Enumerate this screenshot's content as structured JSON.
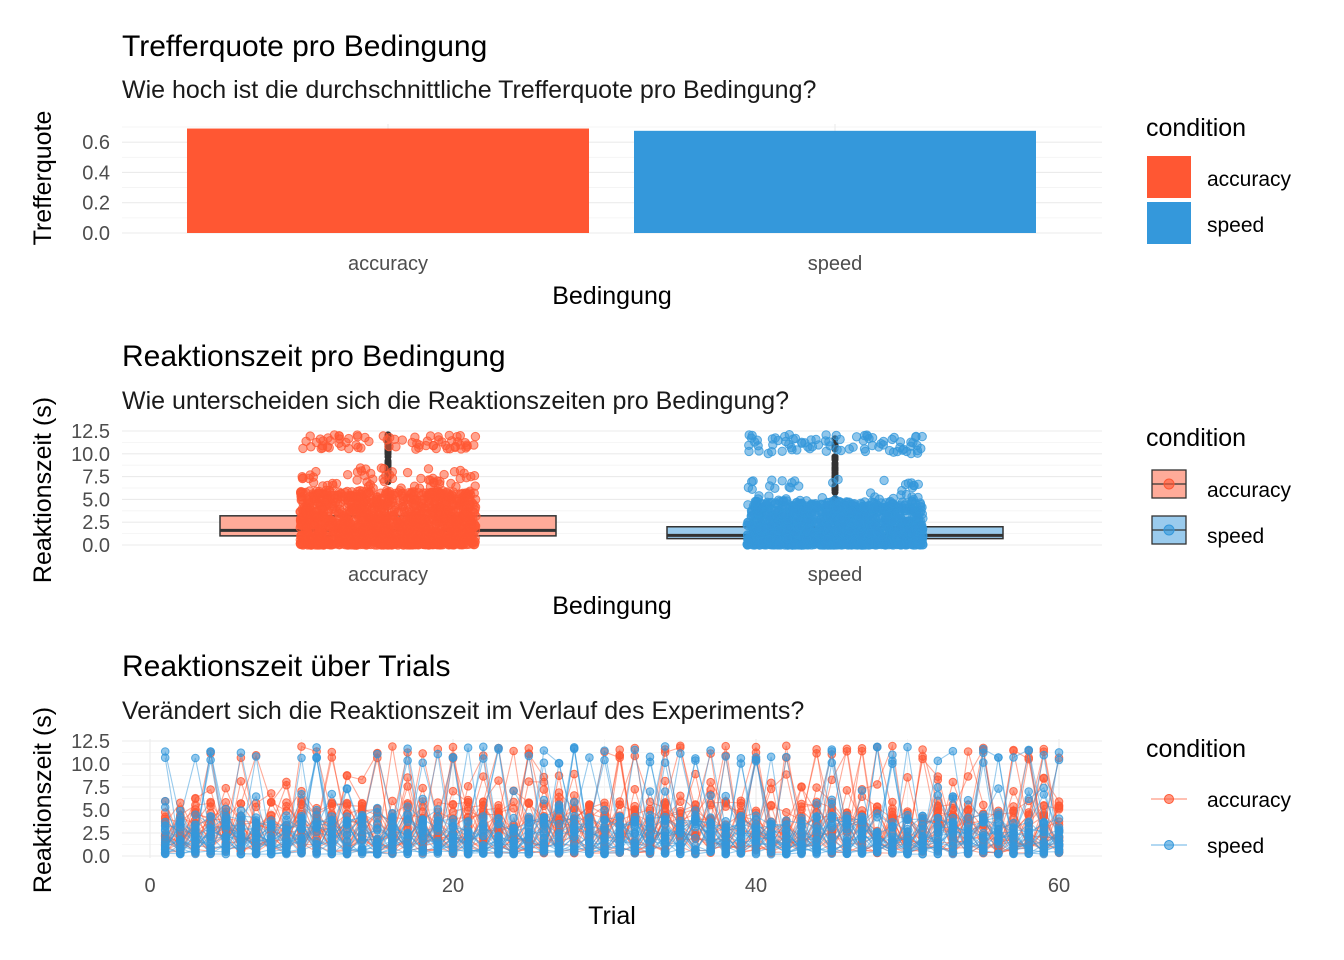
{
  "colors": {
    "accuracy": "#FF5733",
    "speed": "#3498DB"
  },
  "chart_data": [
    {
      "type": "bar",
      "title": "Trefferquote pro Bedingung",
      "subtitle": "Wie hoch ist die durchschnittliche Trefferquote pro Bedingung?",
      "xlabel": "Bedingung",
      "ylabel": "Trefferquote",
      "categories": [
        "accuracy",
        "speed"
      ],
      "values": [
        0.69,
        0.675
      ],
      "ylim": [
        0,
        0.72
      ],
      "yticks": [
        0.0,
        0.2,
        0.4,
        0.6
      ],
      "ytick_labels": [
        "0.0",
        "0.2",
        "0.4",
        "0.6"
      ],
      "grid": true,
      "legend": {
        "title": "condition",
        "placement": "right",
        "entries": [
          "accuracy",
          "speed"
        ]
      }
    },
    {
      "type": "box",
      "title": "Reaktionszeit pro Bedingung",
      "subtitle": "Wie unterscheiden sich die Reaktionszeiten pro Bedingung?",
      "xlabel": "Bedingung",
      "ylabel": "Reaktionszeit (s)",
      "categories": [
        "accuracy",
        "speed"
      ],
      "boxes": [
        {
          "q1": 1.0,
          "median": 1.6,
          "q3": 3.2,
          "whisker_low": 0.25,
          "whisker_high": 6.3
        },
        {
          "q1": 0.7,
          "median": 1.05,
          "q3": 2.0,
          "whisker_low": 0.2,
          "whisker_high": 4.0
        }
      ],
      "ylim": [
        0,
        12.5
      ],
      "yticks": [
        0,
        2.5,
        5,
        7.5,
        10,
        12.5
      ],
      "ytick_labels": [
        "0.0",
        "2.5",
        "5.0",
        "7.5",
        "10.0",
        "12.5"
      ],
      "grid": true,
      "legend": {
        "title": "condition",
        "placement": "right",
        "entries": [
          "accuracy",
          "speed"
        ]
      }
    },
    {
      "type": "line",
      "title": "Reaktionszeit über Trials",
      "subtitle": "Verändert sich die Reaktionszeit im Verlauf des Experiments?",
      "xlabel": "Trial",
      "ylabel": "Reaktionszeit (s)",
      "xlim": [
        0,
        62
      ],
      "xticks": [
        0,
        20,
        40,
        60
      ],
      "xtick_labels": [
        "0",
        "20",
        "40",
        "60"
      ],
      "ylim": [
        0,
        12.5
      ],
      "yticks": [
        0,
        2.5,
        5,
        7.5,
        10,
        12.5
      ],
      "ytick_labels": [
        "0.0",
        "2.5",
        "5.0",
        "7.5",
        "10.0",
        "12.5"
      ],
      "series": [
        {
          "name": "accuracy",
          "trials": [
            1,
            60
          ],
          "typical_range": [
            0.3,
            6.0
          ],
          "outlier_band": [
            10.5,
            12.0
          ]
        },
        {
          "name": "speed",
          "trials": [
            1,
            60
          ],
          "typical_range": [
            0.2,
            4.5
          ],
          "outlier_band": [
            10.0,
            12.0
          ]
        }
      ],
      "grid": true,
      "legend": {
        "title": "condition",
        "placement": "right",
        "entries": [
          "accuracy",
          "speed"
        ]
      }
    }
  ]
}
